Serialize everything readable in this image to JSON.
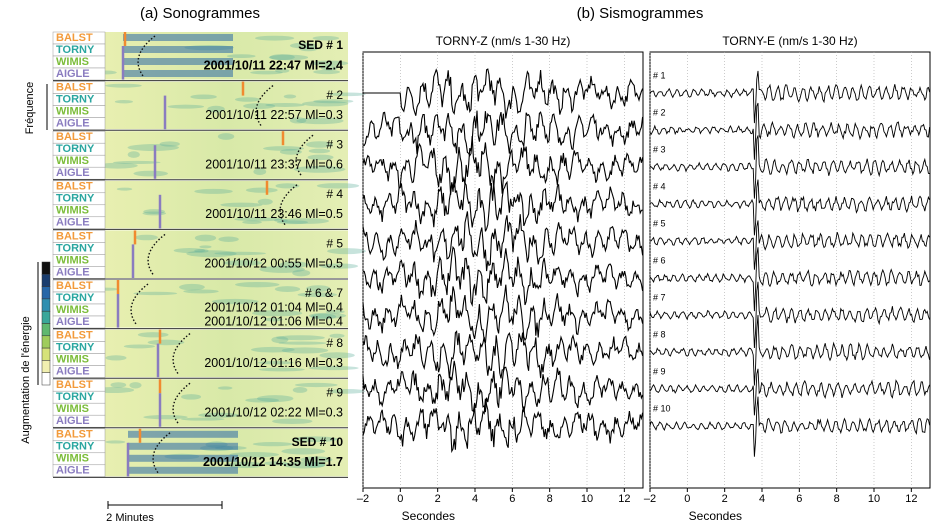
{
  "panel_a": {
    "title": "(a) Sonogrammes",
    "stations": [
      {
        "name": "BALST",
        "color": "#f29a3a"
      },
      {
        "name": "TORNY",
        "color": "#2aa6a0"
      },
      {
        "name": "WIMIS",
        "color": "#7cbd3a"
      },
      {
        "name": "AIGLE",
        "color": "#8a7cc0"
      }
    ],
    "events": [
      {
        "number": "SED # 1",
        "details": [
          "2001/10/11 22:47 Ml=2.4"
        ],
        "bold": true
      },
      {
        "number": "# 2",
        "details": [
          "2001/10/11 22:57 Ml=0.3"
        ]
      },
      {
        "number": "# 3",
        "details": [
          "2001/10/11 23:37 Ml=0.6"
        ]
      },
      {
        "number": "# 4",
        "details": [
          "2001/10/11 23:46 Ml=0.5"
        ]
      },
      {
        "number": "# 5",
        "details": [
          "2001/10/12 00:55 Ml=0.5"
        ]
      },
      {
        "number": "# 6 & 7",
        "details": [
          "2001/10/12 01:04 Ml=0.4",
          "2001/10/12 01:06 Ml=0.4"
        ]
      },
      {
        "number": "# 8",
        "details": [
          "2001/10/12 01:16 Ml=0.3"
        ]
      },
      {
        "number": "# 9",
        "details": [
          "2001/10/12 02:22 Ml=0.3"
        ]
      },
      {
        "number": "SED # 10",
        "details": [
          "2001/10/12 14:35 Ml=1.7"
        ],
        "bold": true
      }
    ],
    "frequency_label": "Fréquence",
    "energy_label": "Augmentation de l'énergie",
    "scale_label": "2 Minutes"
  },
  "panel_b": {
    "title": "(b) Sismogrammes",
    "trace_labels": [
      "# 1",
      "# 2",
      "# 3",
      "# 4",
      "# 5",
      "# 6",
      "# 7",
      "# 8",
      "# 9",
      "# 10"
    ],
    "plots": [
      {
        "title": "TORNY-Z (nm/s 1-30 Hz)",
        "xlabel": "Secondes"
      },
      {
        "title": "TORNY-E (nm/s  1-30 Hz)",
        "xlabel": "Secondes"
      }
    ],
    "xlim": [
      -2,
      13
    ],
    "xticks": [
      {
        "value": -2,
        "label": "–2"
      },
      0,
      2,
      4,
      6,
      8,
      10,
      12
    ],
    "grid": true
  }
}
